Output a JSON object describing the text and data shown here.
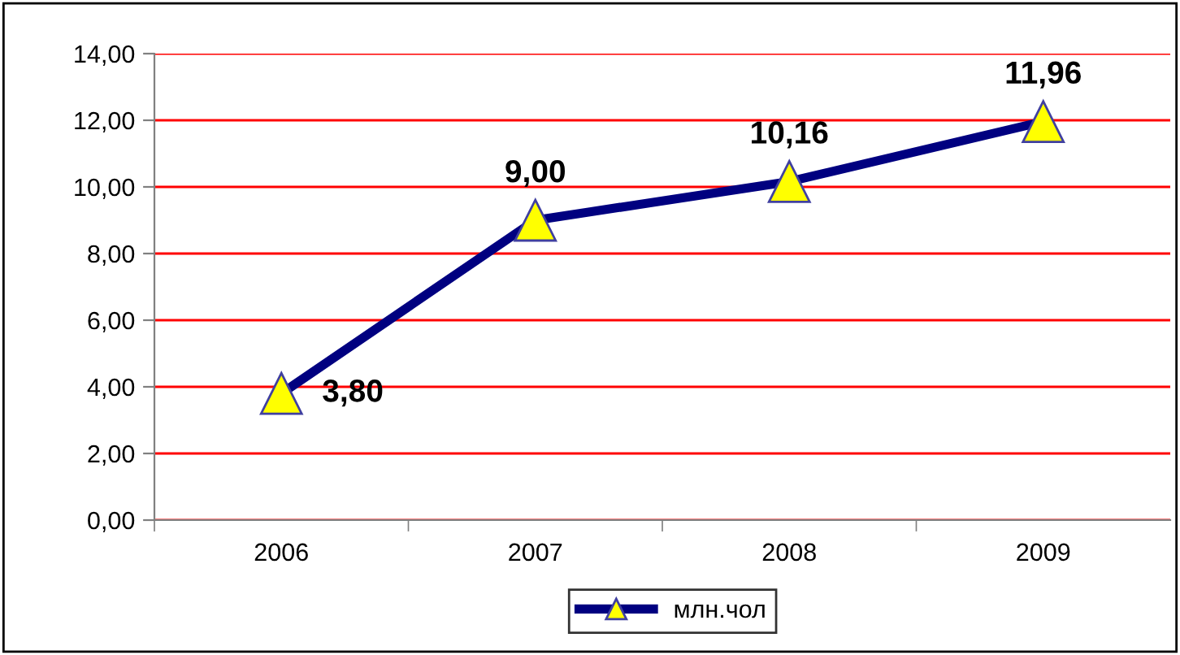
{
  "chart_data": {
    "type": "line",
    "categories": [
      "2006",
      "2007",
      "2008",
      "2009"
    ],
    "series": [
      {
        "name": "млн.чол",
        "color": "#000080",
        "values": [
          3.8,
          9.0,
          10.16,
          11.96
        ],
        "value_labels": [
          "3,80",
          "9,00",
          "10,16",
          "11,96"
        ]
      }
    ],
    "ylim": [
      0,
      14
    ],
    "yticks": [
      {
        "value": 0,
        "label": "0,00"
      },
      {
        "value": 2,
        "label": "2,00"
      },
      {
        "value": 4,
        "label": "4,00"
      },
      {
        "value": 6,
        "label": "6,00"
      },
      {
        "value": 8,
        "label": "8,00"
      },
      {
        "value": 10,
        "label": "10,00"
      },
      {
        "value": 12,
        "label": "12,00"
      },
      {
        "value": 14,
        "label": "14,00"
      }
    ],
    "grid": "y",
    "legend": "bottom",
    "marker": "triangle",
    "line_style": "solid"
  }
}
